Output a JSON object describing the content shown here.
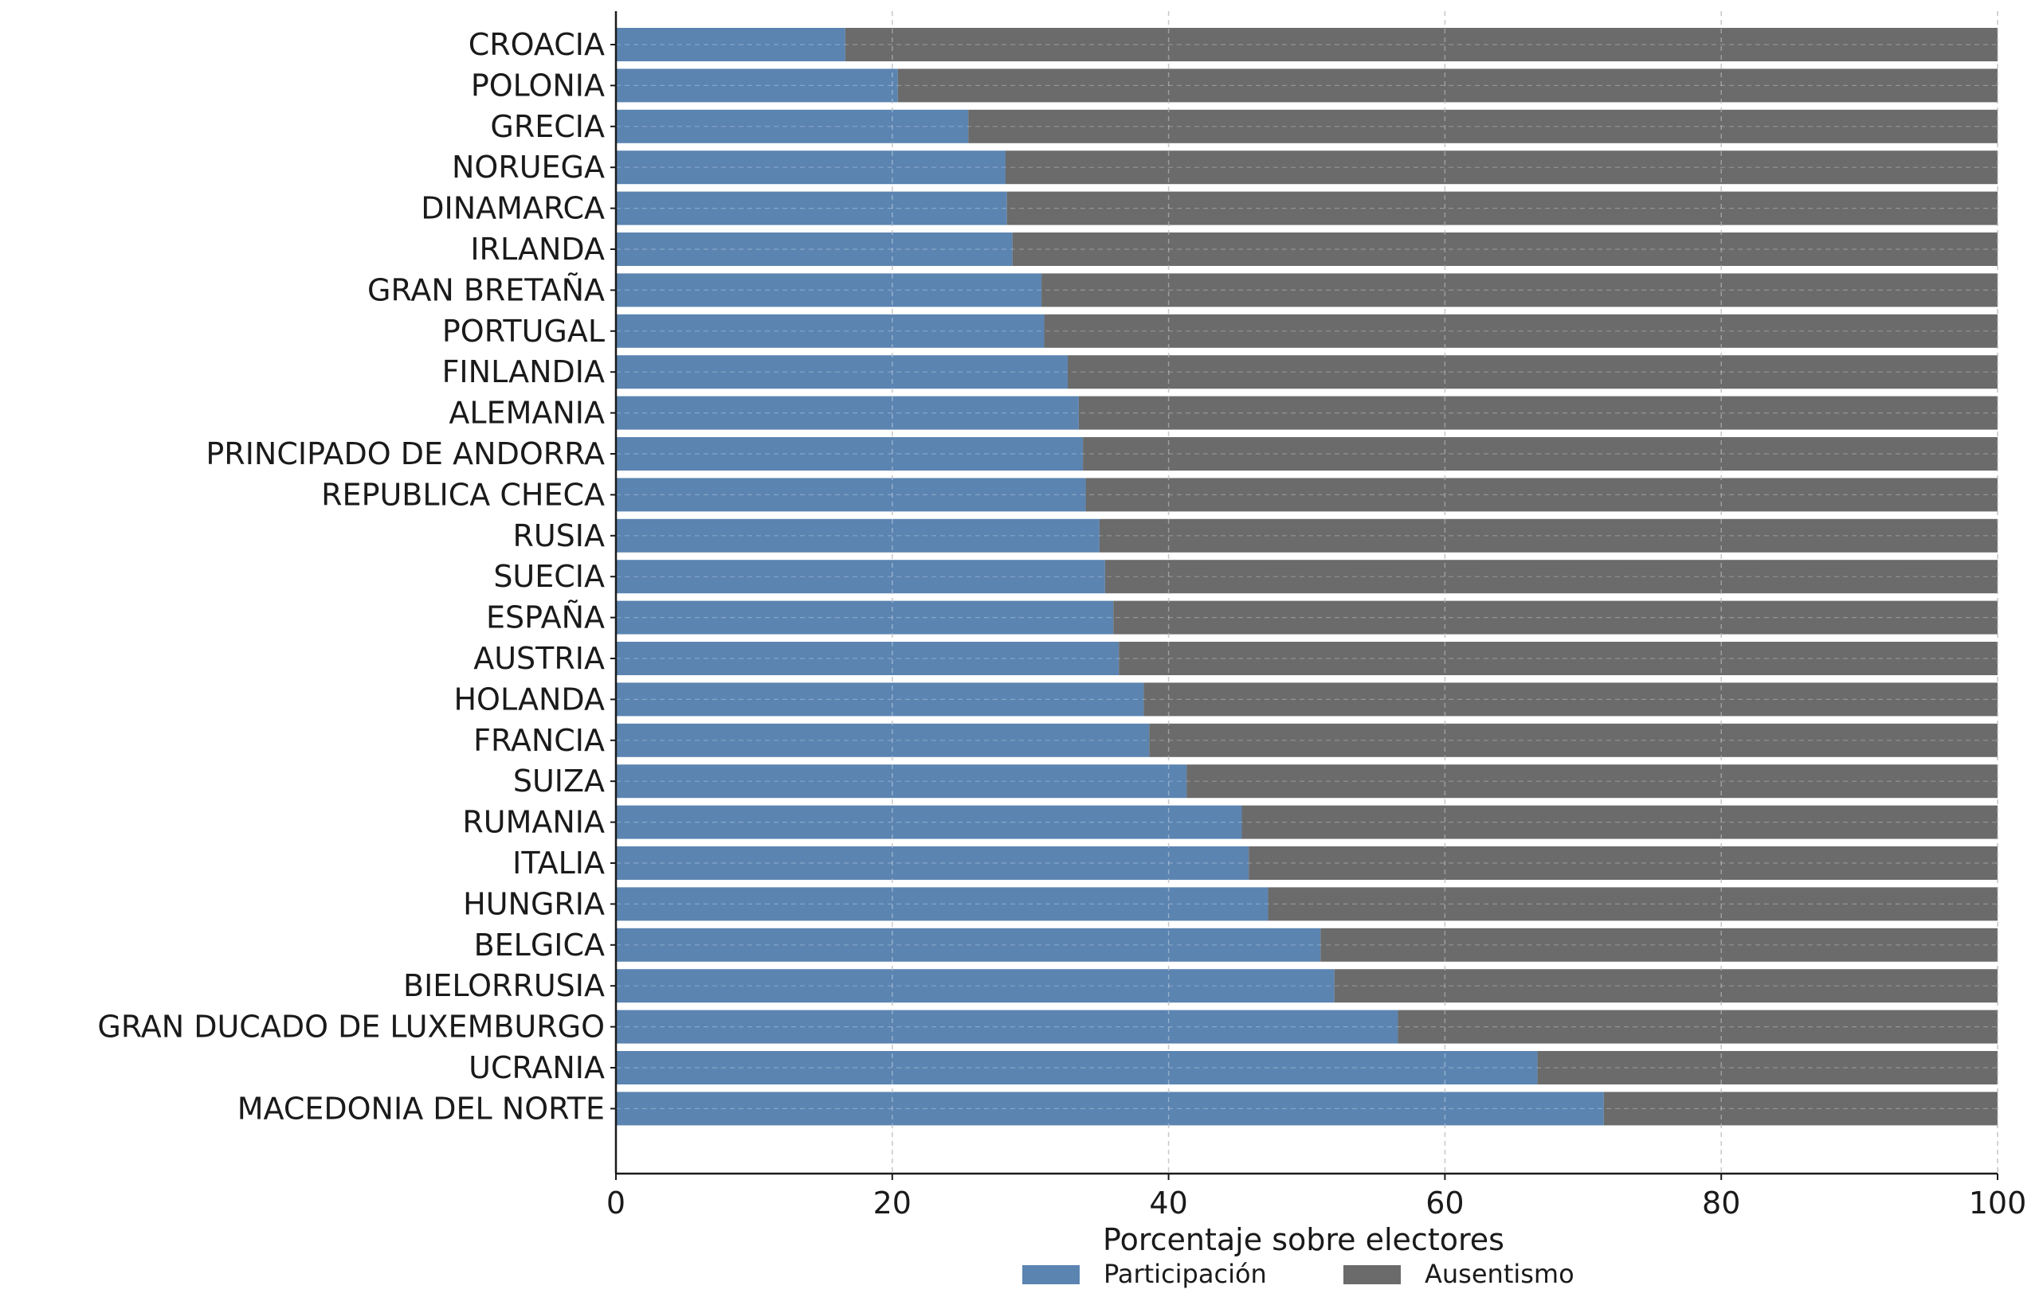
{
  "chart_data": {
    "type": "bar",
    "orientation": "horizontal",
    "stacked": true,
    "categories": [
      "CROACIA",
      "POLONIA",
      "GRECIA",
      "NORUEGA",
      "DINAMARCA",
      "IRLANDA",
      "GRAN BRETAÑA",
      "PORTUGAL",
      "FINLANDIA",
      "ALEMANIA",
      "PRINCIPADO DE ANDORRA",
      "REPUBLICA CHECA",
      "RUSIA",
      "SUECIA",
      "ESPAÑA",
      "AUSTRIA",
      "HOLANDA",
      "FRANCIA",
      "SUIZA",
      "RUMANIA",
      "ITALIA",
      "HUNGRIA",
      "BELGICA",
      "BIELORRUSIA",
      "GRAN DUCADO DE LUXEMBURGO",
      "UCRANIA",
      "MACEDONIA DEL NORTE"
    ],
    "series": [
      {
        "name": "Participación",
        "color": "#5b84b1",
        "values": [
          16.6,
          20.4,
          25.5,
          28.2,
          28.3,
          28.7,
          30.8,
          31.0,
          32.7,
          33.5,
          33.8,
          34.0,
          35.0,
          35.4,
          36.0,
          36.4,
          38.2,
          38.6,
          41.3,
          45.3,
          45.8,
          47.2,
          51.0,
          52.0,
          56.6,
          66.7,
          71.5
        ]
      },
      {
        "name": "Ausentismo",
        "color": "#6b6b6b",
        "values": [
          83.4,
          79.6,
          74.5,
          71.8,
          71.7,
          71.3,
          69.2,
          69.0,
          67.3,
          66.5,
          66.2,
          66.0,
          65.0,
          64.6,
          64.0,
          63.6,
          61.8,
          61.4,
          58.7,
          54.7,
          54.2,
          52.8,
          49.0,
          48.0,
          43.4,
          33.3,
          28.5
        ]
      }
    ],
    "xlabel": "Porcentaje sobre electores",
    "ylabel": "",
    "xlim": [
      0,
      100
    ],
    "xticks": [
      0,
      20,
      40,
      60,
      80,
      100
    ],
    "grid": "vertical dashed",
    "legend": "bottom-center"
  }
}
